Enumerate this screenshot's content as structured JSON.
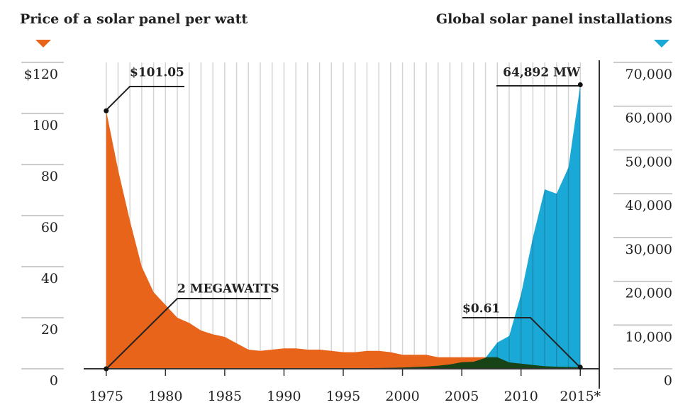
{
  "chart_data": {
    "type": "area",
    "x": [
      1975,
      1976,
      1977,
      1978,
      1979,
      1980,
      1981,
      1982,
      1983,
      1984,
      1985,
      1986,
      1987,
      1988,
      1989,
      1990,
      1991,
      1992,
      1993,
      1994,
      1995,
      1996,
      1997,
      1998,
      1999,
      2000,
      2001,
      2002,
      2003,
      2004,
      2005,
      2006,
      2007,
      2008,
      2009,
      2010,
      2011,
      2012,
      2013,
      2014,
      2015
    ],
    "xlim": [
      1973.1,
      2016.6
    ],
    "xticks": [
      1975,
      1980,
      1985,
      1990,
      1995,
      2000,
      2005,
      2010,
      {
        "value": 2015,
        "label": "2015*"
      }
    ],
    "ylim": [
      0,
      120
    ],
    "yticks": [
      0,
      20,
      40,
      60,
      80,
      100,
      {
        "value": 120,
        "label": "$120"
      }
    ],
    "y2lim": [
      0,
      70000
    ],
    "y2ticks": [
      0,
      {
        "value": 10000,
        "label": "10,000"
      },
      {
        "value": 20000,
        "label": "20,000"
      },
      {
        "value": 30000,
        "label": "30,000"
      },
      {
        "value": 40000,
        "label": "40,000"
      },
      {
        "value": 50000,
        "label": "50,000"
      },
      {
        "value": 60000,
        "label": "60,000"
      },
      {
        "value": 70000,
        "label": "70,000"
      }
    ],
    "grid": true,
    "series": [
      {
        "name": "Price of a solar panel per watt",
        "color": "#e8641b",
        "axis": "y",
        "values": [
          101.05,
          78,
          58,
          40,
          30,
          25,
          20,
          18,
          15,
          13.5,
          12.5,
          10,
          7.5,
          7,
          7.5,
          8,
          8,
          7.5,
          7.5,
          7,
          6.5,
          6.5,
          7,
          7,
          6.5,
          5.5,
          5.5,
          5.5,
          4.5,
          4.5,
          4.5,
          4.5,
          4.5,
          4.5,
          2.5,
          2,
          1.5,
          1,
          0.8,
          0.7,
          0.61
        ]
      },
      {
        "name": "Global solar panel installations",
        "color": "#1aa9d6",
        "axis": "y2",
        "values": [
          2,
          3,
          4,
          5,
          7,
          9,
          12,
          15,
          18,
          22,
          25,
          30,
          35,
          40,
          50,
          60,
          70,
          80,
          90,
          100,
          120,
          140,
          160,
          180,
          220,
          280,
          400,
          500,
          700,
          1000,
          1500,
          1600,
          2500,
          6000,
          7500,
          17000,
          30000,
          41000,
          40000,
          46000,
          64892
        ]
      }
    ],
    "annotations": [
      "$101.05",
      "2 MEGAWATTS",
      "64,892 MW",
      "$0.61"
    ]
  }
}
